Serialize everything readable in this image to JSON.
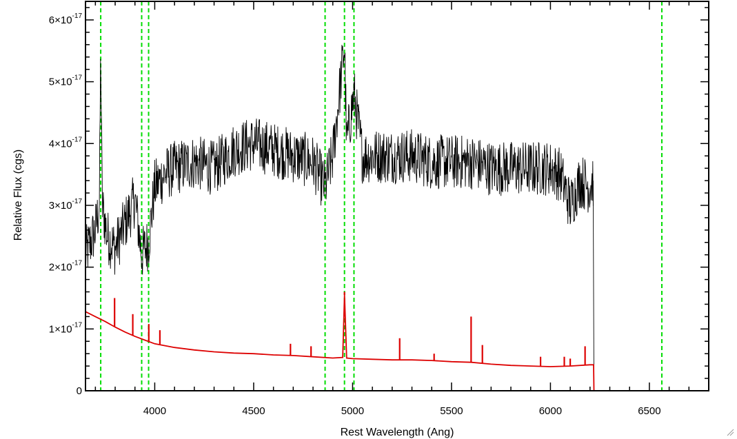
{
  "chart_data": {
    "type": "line",
    "title": "",
    "xlabel": "Rest Wavelength (Ang)",
    "ylabel": "Relative Flux (cgs)",
    "xlim": [
      3650,
      6800
    ],
    "ylim": [
      0,
      6.3e-17
    ],
    "x_ticks": [
      {
        "value": 4000,
        "label": "4000"
      },
      {
        "value": 4500,
        "label": "4500"
      },
      {
        "value": 5000,
        "label": "5000"
      },
      {
        "value": 5500,
        "label": "5500"
      },
      {
        "value": 6000,
        "label": "6000"
      },
      {
        "value": 6500,
        "label": "6500"
      }
    ],
    "y_ticks": [
      {
        "value": 0,
        "mantissa": "0",
        "exponent": ""
      },
      {
        "value": 1e-17,
        "mantissa": "1×10",
        "exponent": "-17"
      },
      {
        "value": 2e-17,
        "mantissa": "2×10",
        "exponent": "-17"
      },
      {
        "value": 3e-17,
        "mantissa": "3×10",
        "exponent": "-17"
      },
      {
        "value": 4e-17,
        "mantissa": "4×10",
        "exponent": "-17"
      },
      {
        "value": 5e-17,
        "mantissa": "5×10",
        "exponent": "-17"
      },
      {
        "value": 6e-17,
        "mantissa": "6×10",
        "exponent": "-17"
      }
    ],
    "x_minor_step": 100,
    "y_minor_step": 2e-18,
    "vertical_lines": [
      {
        "x": 3727,
        "color": "#00dd00",
        "style": "dashed"
      },
      {
        "x": 3934,
        "color": "#00dd00",
        "style": "dashed"
      },
      {
        "x": 3969,
        "color": "#00dd00",
        "style": "dashed"
      },
      {
        "x": 4861,
        "color": "#00dd00",
        "style": "dashed"
      },
      {
        "x": 4959,
        "color": "#00dd00",
        "style": "dashed"
      },
      {
        "x": 5007,
        "color": "#00dd00",
        "style": "dashed"
      },
      {
        "x": 6563,
        "color": "#00dd00",
        "style": "dashed"
      }
    ],
    "series": [
      {
        "color": "#000000",
        "noise_amplitude": 4.5e-18,
        "x": [
          3650,
          3700,
          3720,
          3727,
          3735,
          3760,
          3800,
          3850,
          3900,
          3934,
          3969,
          4000,
          4050,
          4100,
          4200,
          4300,
          4400,
          4500,
          4600,
          4700,
          4800,
          4861,
          4900,
          4959,
          4970,
          5007,
          5050,
          5100,
          5200,
          5300,
          5400,
          5500,
          5600,
          5700,
          5800,
          5900,
          6000,
          6050,
          6100,
          6150,
          6200,
          6210,
          6216,
          6220
        ],
        "y": [
          2.2e-17,
          2.6e-17,
          3e-17,
          5.5e-17,
          3e-17,
          2.5e-17,
          2.3e-17,
          2.7e-17,
          3.1e-17,
          2.2e-17,
          2.4e-17,
          3.3e-17,
          3.5e-17,
          3.6e-17,
          3.7e-17,
          3.6e-17,
          3.9e-17,
          4e-17,
          3.9e-17,
          3.8e-17,
          3.7e-17,
          3.3e-17,
          3.8e-17,
          5.6e-17,
          4e-17,
          4.8e-17,
          3.8e-17,
          3.8e-17,
          3.8e-17,
          3.8e-17,
          3.7e-17,
          3.7e-17,
          3.7e-17,
          3.6e-17,
          3.6e-17,
          3.6e-17,
          3.6e-17,
          3.5e-17,
          3e-17,
          3.4e-17,
          3.3e-17,
          3.4e-17,
          3.4e-17,
          0
        ]
      },
      {
        "color": "#dd0000",
        "x": [
          3650,
          3700,
          3750,
          3800,
          3850,
          3900,
          3950,
          4000,
          4100,
          4200,
          4300,
          4400,
          4500,
          4600,
          4700,
          4800,
          4900,
          4950,
          4959,
          4970,
          5000,
          5100,
          5200,
          5300,
          5400,
          5500,
          5600,
          5700,
          5800,
          5900,
          6000,
          6100,
          6200,
          6218,
          6220,
          6800
        ],
        "y": [
          1.28e-17,
          1.2e-17,
          1.12e-17,
          1.03e-17,
          9.5e-18,
          8.8e-18,
          8.2e-18,
          7.6e-18,
          7e-18,
          6.6e-18,
          6.3e-18,
          6.1e-18,
          6e-18,
          5.8e-18,
          5.7e-18,
          5.5e-18,
          5.3e-18,
          5.4e-18,
          1.55e-17,
          5.3e-18,
          5.2e-18,
          5.1e-18,
          5e-18,
          5e-18,
          4.9e-18,
          4.7e-18,
          4.6e-18,
          4.3e-18,
          4.1e-18,
          4e-18,
          3.9e-18,
          4e-18,
          4.2e-18,
          4.2e-18,
          0,
          0
        ]
      }
    ],
    "emission_lines": [
      {
        "x": 3797,
        "peak": 1.5e-17
      },
      {
        "x": 3889,
        "peak": 1.24e-17
      },
      {
        "x": 3970,
        "peak": 1.08e-17
      },
      {
        "x": 4026,
        "peak": 9.8e-18
      },
      {
        "x": 4686,
        "peak": 7.6e-18
      },
      {
        "x": 4790,
        "peak": 7.2e-18
      },
      {
        "x": 4959,
        "peak": 1.6e-17
      },
      {
        "x": 5238,
        "peak": 8.5e-18
      },
      {
        "x": 5412,
        "peak": 6e-18
      },
      {
        "x": 5599,
        "peak": 1.2e-17
      },
      {
        "x": 5656,
        "peak": 7.4e-18
      },
      {
        "x": 5950,
        "peak": 5.5e-18
      },
      {
        "x": 6070,
        "peak": 5.5e-18
      },
      {
        "x": 6100,
        "peak": 5.2e-18
      },
      {
        "x": 6175,
        "peak": 7.2e-18
      }
    ]
  }
}
